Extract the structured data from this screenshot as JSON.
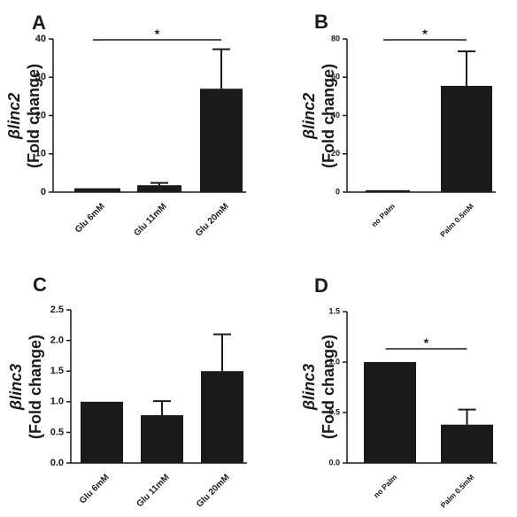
{
  "figure": {
    "background": "#ffffff",
    "bar_color": "#1a1a1a",
    "axis_color": "#1a1a1a"
  },
  "chart_data": [
    {
      "panel": "A",
      "type": "bar",
      "categories": [
        "Glu 6mM",
        "Glu 11mM",
        "Glu 20mM"
      ],
      "values": [
        1.0,
        1.8,
        27.0
      ],
      "errors": [
        0.0,
        0.6,
        10.3
      ],
      "ylabel_gene": "βlinc2",
      "ylabel_unit": "(Fold change)",
      "ylim": [
        0,
        40
      ],
      "yticks": [
        0,
        10,
        20,
        30,
        40
      ],
      "ytick_labels": [
        "0",
        "10",
        "20",
        "30",
        "40"
      ],
      "grid": false,
      "significance": [
        {
          "from": 0,
          "to": 2,
          "label": "*"
        }
      ]
    },
    {
      "panel": "B",
      "type": "bar",
      "categories": [
        "no Palm",
        "Palm 0.5mM"
      ],
      "values": [
        1.0,
        55.5
      ],
      "errors": [
        0.0,
        18.0
      ],
      "ylabel_gene": "βlinc2",
      "ylabel_unit": "(Fold change)",
      "ylim": [
        0,
        80
      ],
      "yticks": [
        0,
        20,
        40,
        60,
        80
      ],
      "ytick_labels": [
        "0",
        "20",
        "40",
        "60",
        "80"
      ],
      "grid": false,
      "significance": [
        {
          "from": 0,
          "to": 1,
          "label": "*"
        }
      ]
    },
    {
      "panel": "C",
      "type": "bar",
      "categories": [
        "Glu 6mM",
        "Glu 11mM",
        "Glu 20mM"
      ],
      "values": [
        1.0,
        0.78,
        1.5
      ],
      "errors": [
        0.0,
        0.23,
        0.6
      ],
      "ylabel_gene": "βlinc3",
      "ylabel_unit": "(Fold change)",
      "ylim": [
        0,
        2.5
      ],
      "yticks": [
        0,
        0.5,
        1.0,
        1.5,
        2.0,
        2.5
      ],
      "ytick_labels": [
        "0.0",
        "0.5",
        "1.0",
        "1.5",
        "2.0",
        "2.5"
      ],
      "grid": false,
      "significance": []
    },
    {
      "panel": "D",
      "type": "bar",
      "categories": [
        "no Palm",
        "Palm 0.5mM"
      ],
      "values": [
        1.0,
        0.38
      ],
      "errors": [
        0.0,
        0.15
      ],
      "ylabel_gene": "βlinc3",
      "ylabel_unit": "(Fold change)",
      "ylim": [
        0,
        1.5
      ],
      "yticks": [
        0,
        0.5,
        1.0,
        1.5
      ],
      "ytick_labels": [
        "0.0",
        "0.5",
        "1.0",
        "1.5"
      ],
      "grid": false,
      "significance": [
        {
          "from": 0,
          "to": 1,
          "label": "*"
        }
      ]
    }
  ]
}
